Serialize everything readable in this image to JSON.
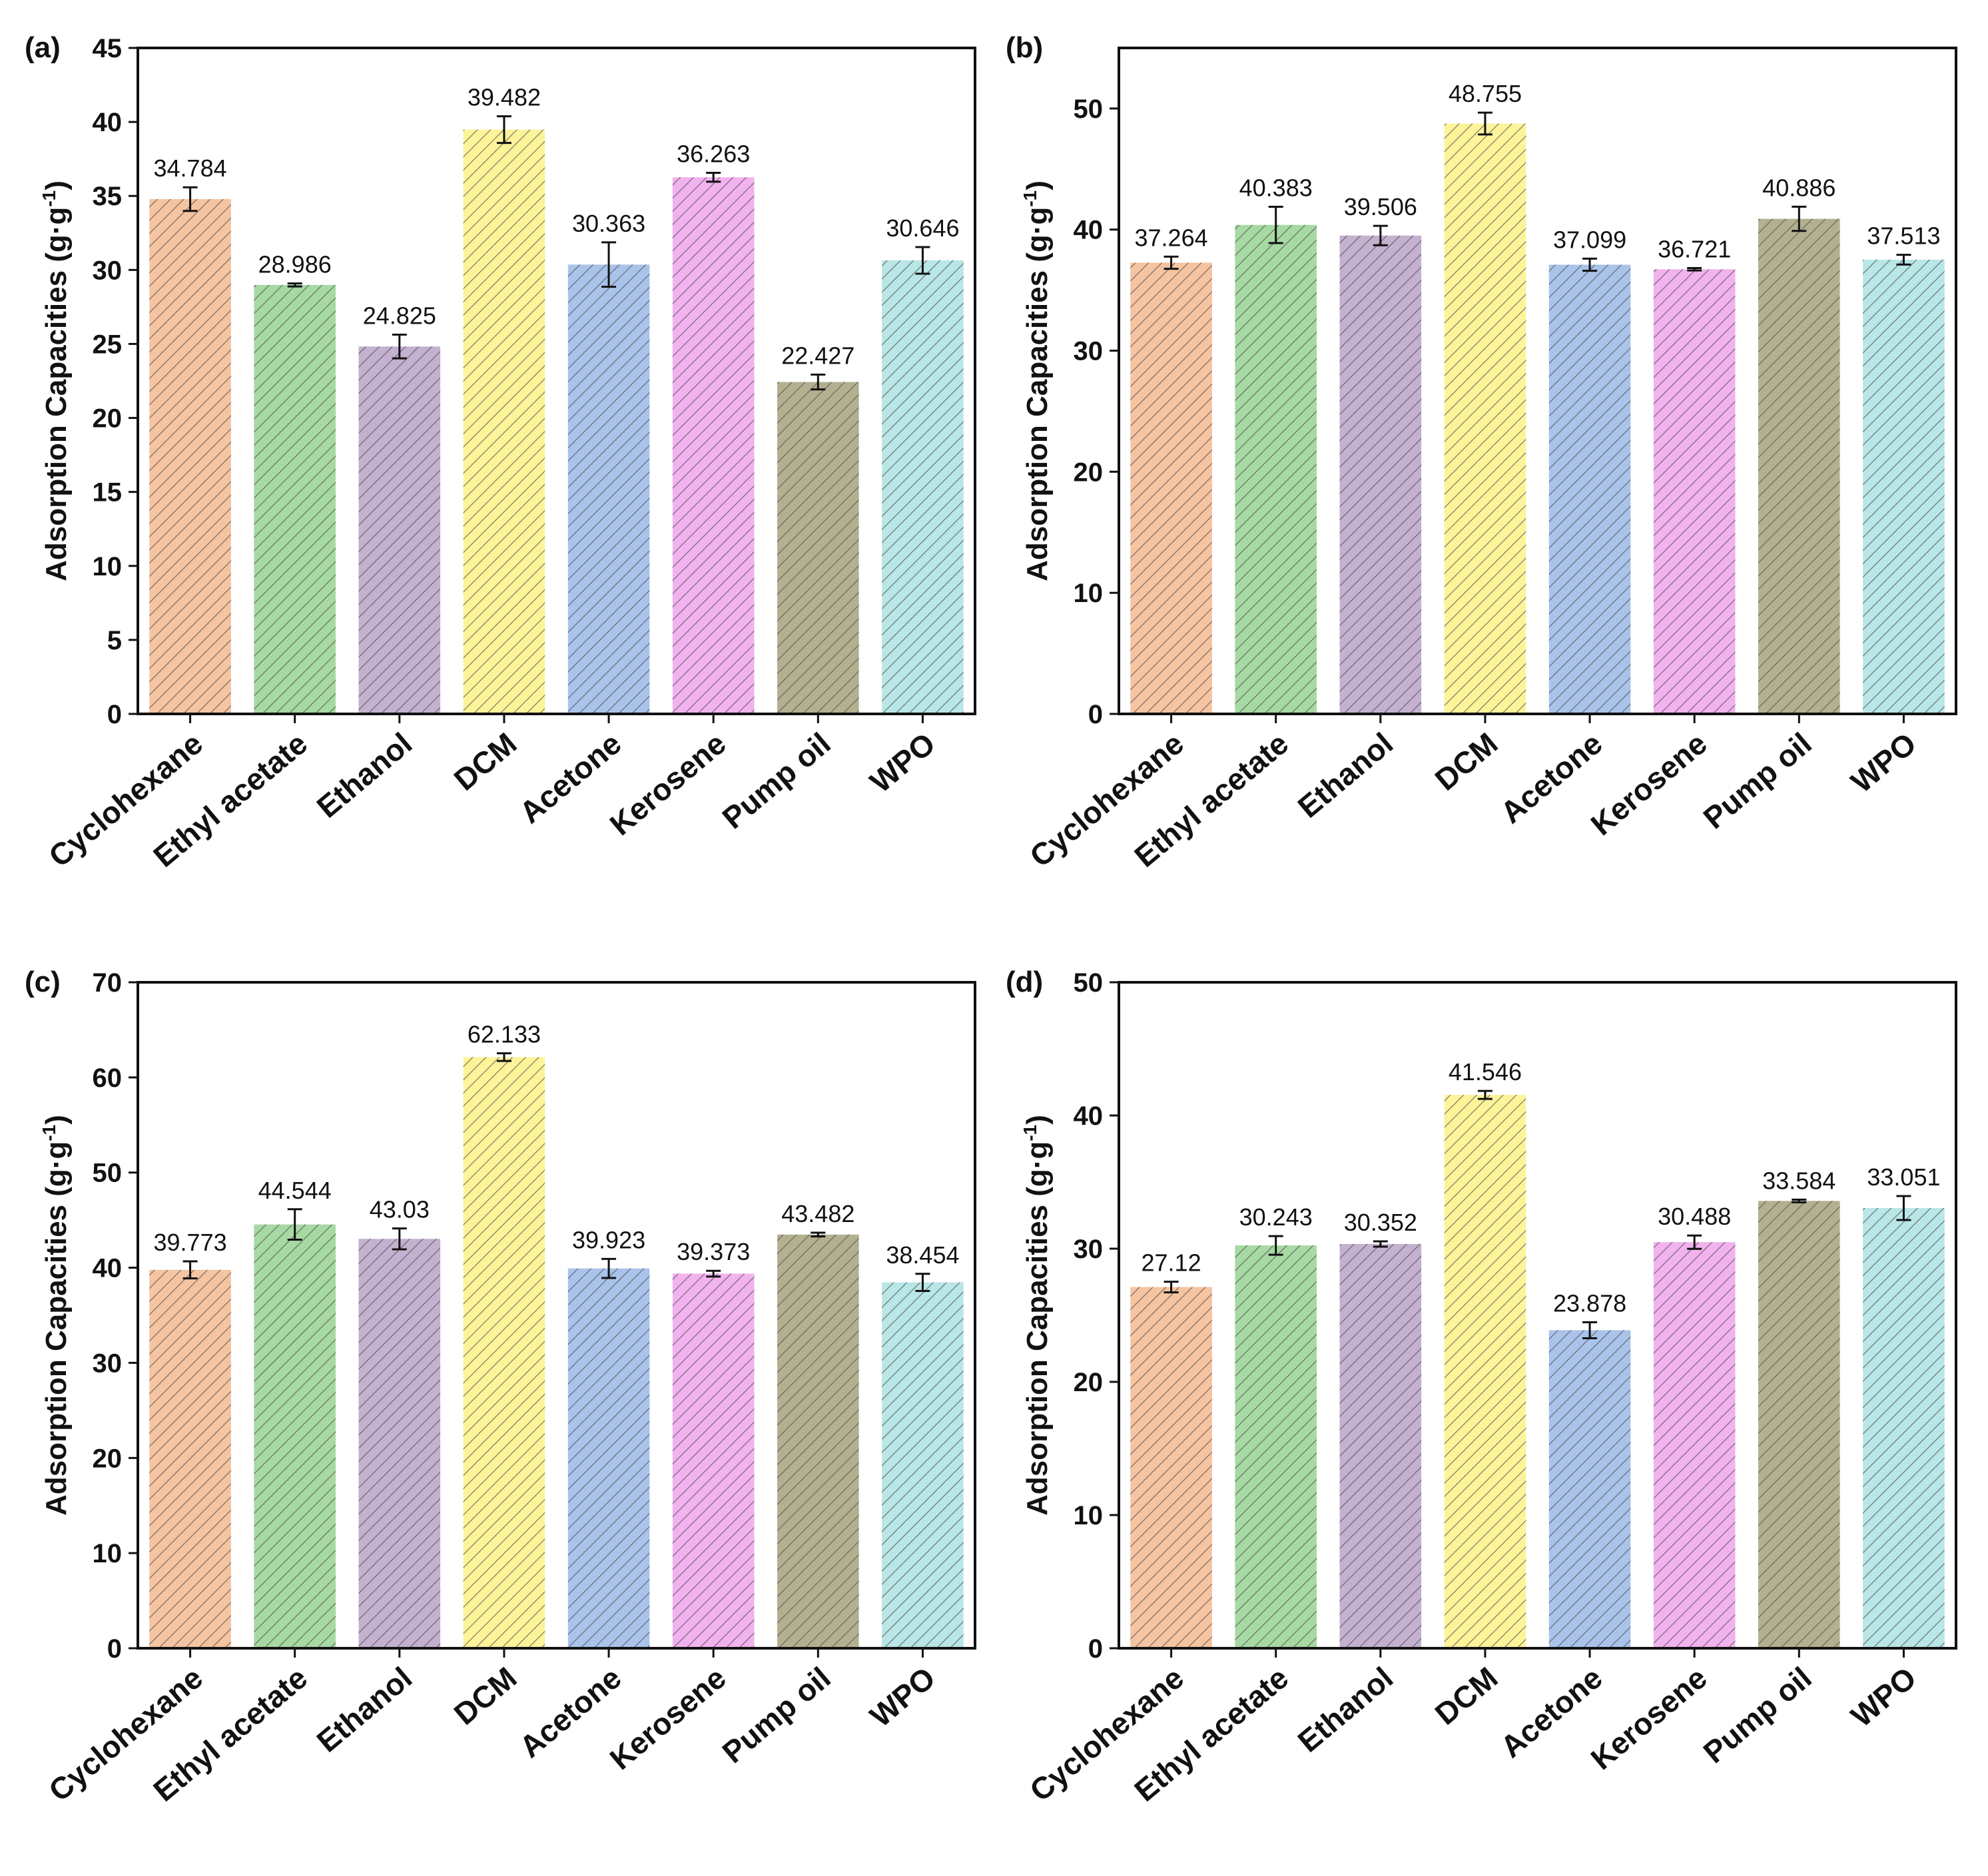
{
  "colors": {
    "categories": [
      "#f5c4a0",
      "#a7d9a2",
      "#c4b0cf",
      "#fdf49a",
      "#a9c3ea",
      "#f1b2ee",
      "#b3b08f",
      "#b9e6e6"
    ],
    "hatch": "#4d4d4d"
  },
  "chart_data": [
    {
      "type": "bar",
      "panel_label": "(a)",
      "ylabel": "Adsorption Capacities (g·g",
      "ylabel_sup": "-1",
      "ylabel_close": ")",
      "categories": [
        "Cyclohexane",
        "Ethyl acetate",
        "Ethanol",
        "DCM",
        "Acetone",
        "Kerosene",
        "Pump oil",
        "WPO"
      ],
      "values": [
        34.784,
        28.986,
        24.825,
        39.482,
        30.363,
        36.263,
        22.427,
        30.646
      ],
      "value_labels": [
        "34.784",
        "28.986",
        "24.825",
        "39.482",
        "30.363",
        "36.263",
        "22.427",
        "30.646"
      ],
      "errors": [
        0.8,
        0.1,
        0.8,
        0.9,
        1.5,
        0.3,
        0.5,
        0.9
      ],
      "ylim": [
        0,
        45
      ],
      "yticks": [
        0,
        5,
        10,
        15,
        20,
        25,
        30,
        35,
        40,
        45
      ],
      "ytick_labels": [
        "0",
        "5",
        "10",
        "15",
        "20",
        "25",
        "30",
        "35",
        "40",
        "45"
      ]
    },
    {
      "type": "bar",
      "panel_label": "(b)",
      "ylabel": "Adsorption Capacities (g·g",
      "ylabel_sup": "-1",
      "ylabel_close": ")",
      "categories": [
        "Cyclohexane",
        "Ethyl acetate",
        "Ethanol",
        "DCM",
        "Acetone",
        "Kerosene",
        "Pump oil",
        "WPO"
      ],
      "values": [
        37.264,
        40.383,
        39.506,
        48.755,
        37.099,
        36.721,
        40.886,
        37.513
      ],
      "value_labels": [
        "37.264",
        "40.383",
        "39.506",
        "48.755",
        "37.099",
        "36.721",
        "40.886",
        "37.513"
      ],
      "errors": [
        0.5,
        1.5,
        0.8,
        0.9,
        0.5,
        0.1,
        1.0,
        0.4
      ],
      "ylim": [
        0,
        55
      ],
      "yticks": [
        0,
        10,
        20,
        30,
        40,
        50
      ],
      "ytick_labels": [
        "0",
        "10",
        "20",
        "30",
        "40",
        "50"
      ]
    },
    {
      "type": "bar",
      "panel_label": "(c)",
      "ylabel": "Adsorption Capacities (g·g",
      "ylabel_sup": "-1",
      "ylabel_close": ")",
      "categories": [
        "Cyclohexane",
        "Ethyl acetate",
        "Ethanol",
        "DCM",
        "Acetone",
        "Kerosene",
        "Pump oil",
        "WPO"
      ],
      "values": [
        39.773,
        44.544,
        43.03,
        62.133,
        39.923,
        39.373,
        43.482,
        38.454
      ],
      "value_labels": [
        "39.773",
        "44.544",
        "43.03",
        "62.133",
        "39.923",
        "39.373",
        "43.482",
        "38.454"
      ],
      "errors": [
        0.9,
        1.6,
        1.1,
        0.4,
        1.0,
        0.3,
        0.2,
        0.9
      ],
      "ylim": [
        0,
        70
      ],
      "yticks": [
        0,
        10,
        20,
        30,
        40,
        50,
        60,
        70
      ],
      "ytick_labels": [
        "0",
        "10",
        "20",
        "30",
        "40",
        "50",
        "60",
        "70"
      ]
    },
    {
      "type": "bar",
      "panel_label": "(d)",
      "ylabel": "Adsorption Capacities (g·g",
      "ylabel_sup": "-1",
      "ylabel_close": ")",
      "categories": [
        "Cyclohexane",
        "Ethyl acetate",
        "Ethanol",
        "DCM",
        "Acetone",
        "Kerosene",
        "Pump oil",
        "WPO"
      ],
      "values": [
        27.12,
        30.243,
        30.352,
        41.546,
        23.878,
        30.488,
        33.584,
        33.051
      ],
      "value_labels": [
        "27.12",
        "30.243",
        "30.352",
        "41.546",
        "23.878",
        "30.488",
        "33.584",
        "33.051"
      ],
      "errors": [
        0.4,
        0.7,
        0.2,
        0.3,
        0.6,
        0.5,
        0.1,
        0.9
      ],
      "ylim": [
        0,
        50
      ],
      "yticks": [
        0,
        10,
        20,
        30,
        40,
        50
      ],
      "ytick_labels": [
        "0",
        "10",
        "20",
        "30",
        "40",
        "50"
      ]
    }
  ]
}
